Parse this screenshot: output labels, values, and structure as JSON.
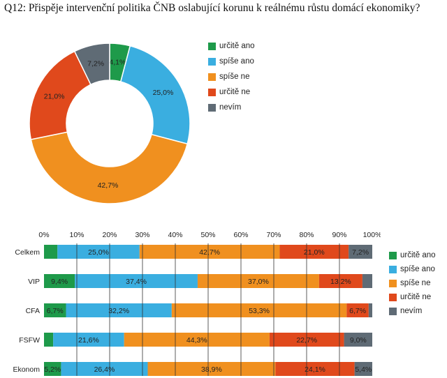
{
  "title": "Q12: Přispěje intervenční politika ČNB oslabující korunu k reálnému růstu domácí ekonomiky?",
  "colors": {
    "urcite_ano": "#1e9a4a",
    "spise_ano": "#3aaee0",
    "spise_ne": "#f0901f",
    "urcite_ne": "#e0491c",
    "nevim": "#5f6b75"
  },
  "chart_data": [
    {
      "type": "pie",
      "variant": "donut",
      "categories": [
        "určitě ano",
        "spíše ano",
        "spíše ne",
        "určitě ne",
        "nevím"
      ],
      "values": [
        4.1,
        25.0,
        42.7,
        21.0,
        7.2
      ],
      "labels": [
        "4,1%",
        "25,0%",
        "42,7%",
        "21,0%",
        "7,2%"
      ],
      "legend_position": "right"
    },
    {
      "type": "bar",
      "orientation": "horizontal",
      "stacked": true,
      "categories": [
        "Celkem",
        "VIP",
        "CFA",
        "FSFW",
        "Ekonom"
      ],
      "series": [
        {
          "name": "určitě ano",
          "values": [
            4.1,
            9.4,
            6.7,
            2.8,
            5.2
          ],
          "labels": [
            "",
            "9,4%",
            "6,7%",
            "",
            "5,2%"
          ]
        },
        {
          "name": "spíše ano",
          "values": [
            25.0,
            37.4,
            32.2,
            21.6,
            26.4
          ],
          "labels": [
            "25,0%",
            "37,4%",
            "32,2%",
            "21,6%",
            "26,4%"
          ]
        },
        {
          "name": "spíše ne",
          "values": [
            42.7,
            37.0,
            53.3,
            44.3,
            38.9
          ],
          "labels": [
            "42,7%",
            "37,0%",
            "53,3%",
            "44,3%",
            "38,9%"
          ]
        },
        {
          "name": "určitě ne",
          "values": [
            21.0,
            13.2,
            6.7,
            22.7,
            24.1
          ],
          "labels": [
            "21,0%",
            "13,2%",
            "6,7%",
            "22,7%",
            "24,1%"
          ]
        },
        {
          "name": "nevím",
          "values": [
            7.2,
            3.0,
            1.1,
            9.0,
            5.4
          ],
          "labels": [
            "7,2%",
            "",
            "",
            "9,0%",
            "5,4%"
          ]
        }
      ],
      "xlim": [
        0,
        100
      ],
      "ticks": [
        "0%",
        "10%",
        "20%",
        "30%",
        "40%",
        "50%",
        "60%",
        "70%",
        "80%",
        "90%",
        "100%"
      ],
      "grid": true,
      "legend_position": "right"
    }
  ]
}
